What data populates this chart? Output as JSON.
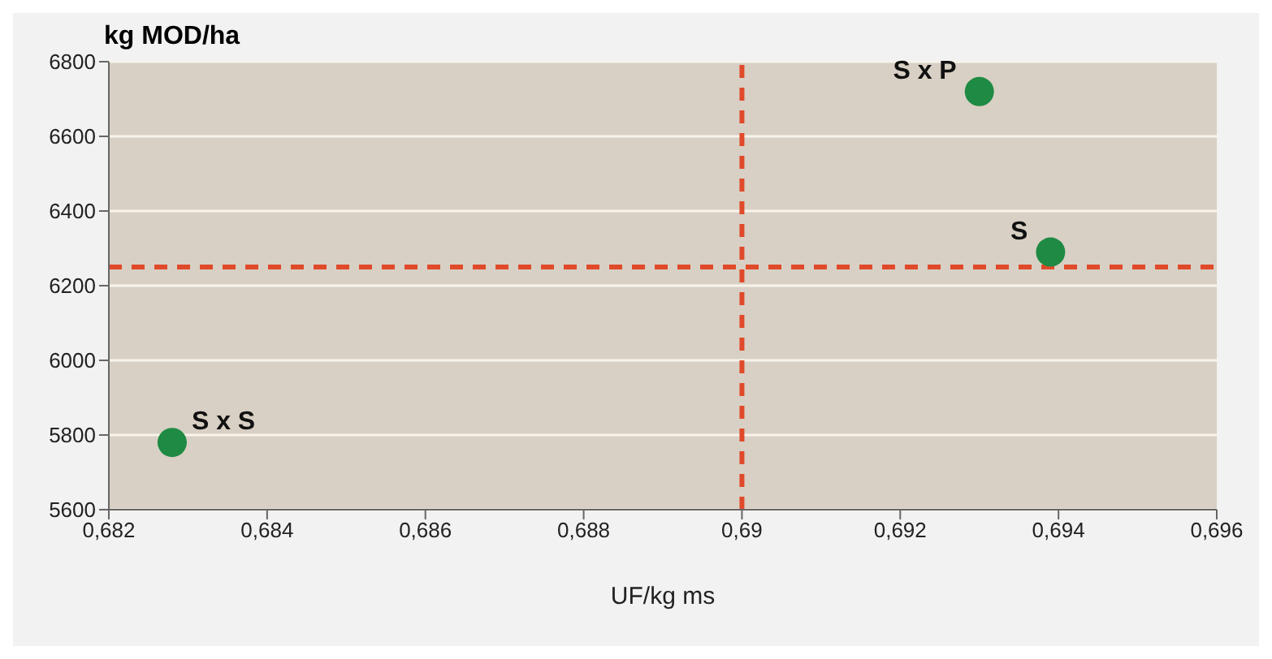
{
  "chart_data": {
    "type": "scatter",
    "xlabel": "UF/kg ms",
    "ylabel": "kg MOD/ha",
    "x": [
      0.6828,
      0.6939,
      0.693
    ],
    "values": [
      5780,
      6290,
      6720
    ],
    "color": "#1f8a43",
    "marker": "circle",
    "xlim": [
      0.682,
      0.696
    ],
    "xticks": [
      {
        "value": 0.682,
        "label": "0,682"
      },
      {
        "value": 0.684,
        "label": "0,684"
      },
      {
        "value": 0.686,
        "label": "0,686"
      },
      {
        "value": 0.688,
        "label": "0,688"
      },
      {
        "value": 0.69,
        "label": "0,69"
      },
      {
        "value": 0.692,
        "label": "0,692"
      },
      {
        "value": 0.694,
        "label": "0,694"
      },
      {
        "value": 0.696,
        "label": "0,696"
      }
    ],
    "ylim": [
      5600,
      6800
    ],
    "yticks": [
      5600,
      5800,
      6000,
      6200,
      6400,
      6600,
      6800
    ],
    "grid": "y",
    "ref_lines": [
      {
        "axis": "x",
        "value": 0.69,
        "color": "#e04a2a",
        "line_style": "dashed"
      },
      {
        "axis": "y",
        "value": 6250,
        "color": "#e04a2a",
        "line_style": "dashed"
      }
    ],
    "annotations": [
      {
        "text": "S x S",
        "x": 0.6828,
        "y": 5780
      },
      {
        "text": "S",
        "x": 0.6939,
        "y": 6290
      },
      {
        "text": "S x P",
        "x": 0.693,
        "y": 6720
      }
    ]
  }
}
